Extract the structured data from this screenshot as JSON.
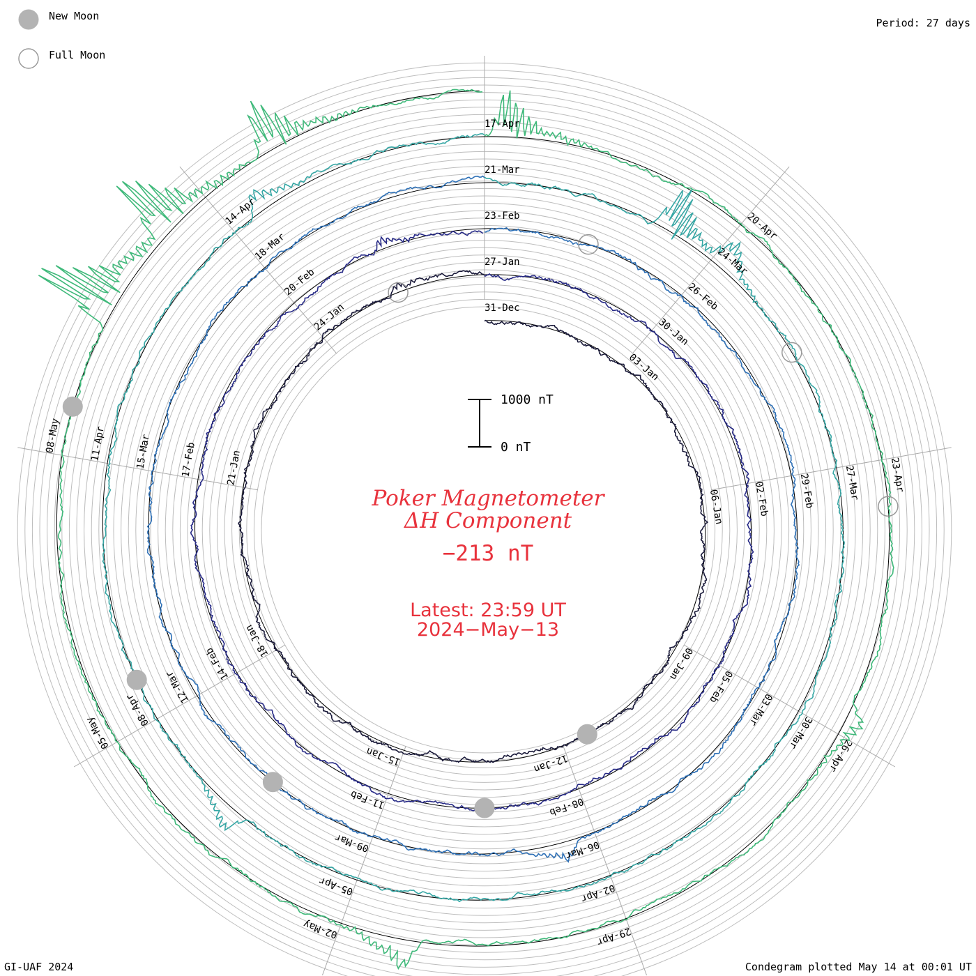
{
  "legend": {
    "new_moon_label": "New Moon",
    "full_moon_label": "Full Moon"
  },
  "period_label": "Period: 27 days",
  "credit": "GI-UAF 2024",
  "plotted": "Condegram plotted May 14 at 00:01 UT",
  "title": {
    "line1": "Poker Magnetometer",
    "line2": "ΔH Component",
    "value": "−213 nT",
    "latest": "Latest: 23:59 UT",
    "date": "2024−May−13"
  },
  "scale": {
    "top_label": "1000 nT",
    "bottom_label": "0 nT"
  },
  "colors": {
    "title": "#e8323c",
    "moon_fill": "#b3b3b3",
    "grid": "#bdbdbd",
    "turn_colors": [
      "#1a1a3a",
      "#272a86",
      "#2e70b6",
      "#35a6a4",
      "#3fb97a",
      "#7ac23a",
      "#b7b72a",
      "#c29a1c",
      "#c5671e",
      "#c12a1a",
      "#c01414"
    ]
  },
  "chart_data": {
    "type": "condegram",
    "period_days": 27,
    "start_date": "2023-12-31",
    "latest": "2024-05-13 23:59 UT",
    "latest_value_nT": -213,
    "scale_nT": [
      0,
      1000
    ],
    "date_labels": [
      "31-Dec",
      "03-Jan",
      "06-Jan",
      "09-Jan",
      "12-Jan",
      "15-Jan",
      "18-Jan",
      "21-Jan",
      "24-Jan",
      "27-Jan",
      "30-Jan",
      "02-Feb",
      "05-Feb",
      "08-Feb",
      "11-Feb",
      "14-Feb",
      "17-Feb",
      "20-Feb",
      "23-Feb",
      "26-Feb",
      "29-Feb",
      "03-Mar",
      "06-Mar",
      "09-Mar",
      "12-Mar",
      "15-Mar",
      "18-Mar",
      "21-Mar",
      "24-Mar",
      "27-Mar",
      "30-Mar",
      "02-Apr",
      "05-Apr",
      "08-Apr",
      "11-Apr",
      "14-Apr",
      "17-Apr",
      "20-Apr",
      "23-Apr",
      "26-Apr",
      "29-Apr",
      "02-May",
      "05-May",
      "08-May"
    ],
    "new_moons": [
      "2024-01-11",
      "2024-02-09",
      "2024-03-10",
      "2024-04-08",
      "2024-05-08"
    ],
    "full_moons": [
      "2024-01-25",
      "2024-02-24",
      "2024-03-25",
      "2024-04-23"
    ],
    "disturbances": [
      {
        "day": 25.5,
        "amp_nT": 250
      },
      {
        "day": 52.5,
        "amp_nT": 300
      },
      {
        "day": 66.4,
        "amp_nT": 350
      },
      {
        "day": 83.3,
        "amp_nT": 900
      },
      {
        "day": 84.1,
        "amp_nT": 600
      },
      {
        "day": 97.6,
        "amp_nT": 500
      },
      {
        "day": 105.4,
        "amp_nT": 500
      },
      {
        "day": 108.2,
        "amp_nT": 800
      },
      {
        "day": 116.8,
        "amp_nT": 500
      },
      {
        "day": 122.3,
        "amp_nT": 700
      },
      {
        "day": 130.5,
        "amp_nT": 1500
      },
      {
        "day": 131.5,
        "amp_nT": 1200
      },
      {
        "day": 132.8,
        "amp_nT": 900
      }
    ]
  }
}
